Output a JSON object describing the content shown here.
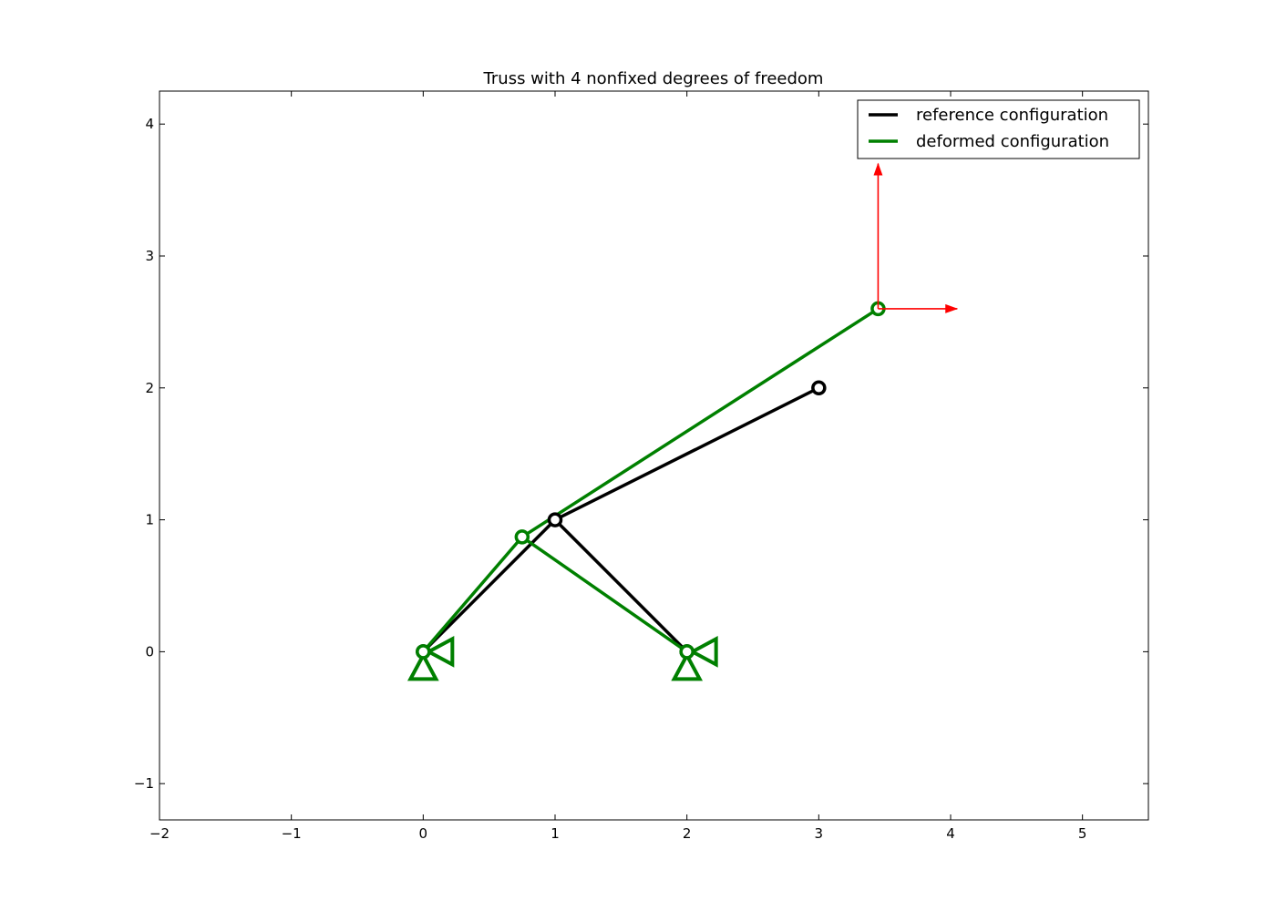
{
  "chart_data": {
    "type": "line",
    "title": "Truss with 4 nonfixed degrees of freedom",
    "xlabel": "",
    "ylabel": "",
    "xlim": [
      -2,
      5.5
    ],
    "ylim": [
      -1.275,
      4.25
    ],
    "xticks": [
      -2,
      -1,
      0,
      1,
      2,
      3,
      4,
      5
    ],
    "yticks": [
      -1,
      0,
      1,
      2,
      3,
      4
    ],
    "xtick_labels": [
      "−2",
      "−1",
      "0",
      "1",
      "2",
      "3",
      "4",
      "5"
    ],
    "ytick_labels": [
      "−1",
      "0",
      "1",
      "2",
      "3",
      "4"
    ],
    "grid": false,
    "legend_position": "top-right",
    "series": [
      {
        "name": "reference configuration",
        "color": "#000000",
        "nodes": [
          [
            0,
            0
          ],
          [
            1,
            1
          ],
          [
            2,
            0
          ],
          [
            3,
            2
          ]
        ],
        "members": [
          [
            0,
            1
          ],
          [
            1,
            2
          ],
          [
            1,
            3
          ]
        ]
      },
      {
        "name": "deformed configuration",
        "color": "#008000",
        "nodes": [
          [
            0,
            0
          ],
          [
            0.75,
            0.87
          ],
          [
            2,
            0
          ],
          [
            3.45,
            2.6
          ]
        ],
        "members": [
          [
            0,
            1
          ],
          [
            1,
            2
          ],
          [
            1,
            3
          ]
        ]
      }
    ],
    "supports": [
      {
        "x": 0,
        "y": 0,
        "type": "pin",
        "color": "#008000"
      },
      {
        "x": 2,
        "y": 0,
        "type": "pin",
        "color": "#008000"
      }
    ],
    "loads": [
      {
        "x": 3.45,
        "y": 2.6,
        "dx": 0.6,
        "dy": 0,
        "color": "#ff0000"
      },
      {
        "x": 3.45,
        "y": 2.6,
        "dx": 0,
        "dy": 1.1,
        "color": "#ff0000"
      }
    ]
  }
}
